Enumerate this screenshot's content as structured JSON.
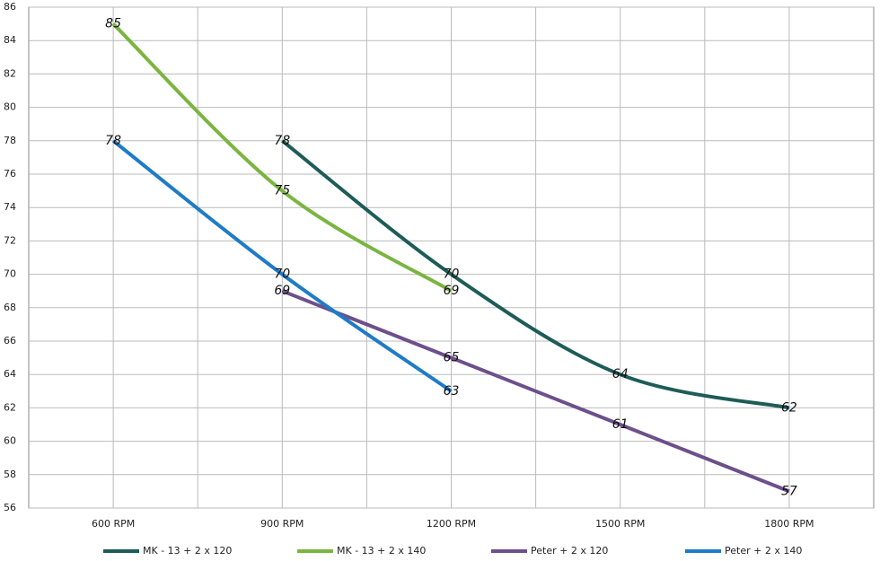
{
  "chart_data": {
    "type": "line",
    "xlim": [
      450,
      1950
    ],
    "xticks": [
      {
        "value": 600,
        "label": "600 RPM"
      },
      {
        "value": 900,
        "label": "900 RPM"
      },
      {
        "value": 1200,
        "label": "1200 RPM"
      },
      {
        "value": 1500,
        "label": "1500 RPM"
      },
      {
        "value": 1800,
        "label": "1800 RPM"
      }
    ],
    "ylim": [
      56,
      86
    ],
    "yticks": [
      56,
      58,
      60,
      62,
      64,
      66,
      68,
      70,
      72,
      74,
      76,
      78,
      80,
      82,
      84,
      86
    ],
    "grid": true,
    "smooth": true,
    "legend": "bottom",
    "series": [
      {
        "name": "MK - 13 + 2 x 120",
        "color": "#1d5c57",
        "x": [
          900,
          1200,
          1500,
          1800
        ],
        "values": [
          78,
          70,
          64,
          62
        ]
      },
      {
        "name": "MK - 13 + 2 x 140",
        "color": "#7ab540",
        "x": [
          600,
          900,
          1200
        ],
        "values": [
          85,
          75,
          69
        ]
      },
      {
        "name": "Peter + 2 x 120",
        "color": "#6d4f8c",
        "x": [
          900,
          1200,
          1500,
          1800
        ],
        "values": [
          69,
          65,
          61,
          57
        ]
      },
      {
        "name": "Peter + 2 x 140",
        "color": "#1f7bc6",
        "x": [
          600,
          900,
          1200
        ],
        "values": [
          78,
          70,
          63
        ]
      }
    ]
  }
}
